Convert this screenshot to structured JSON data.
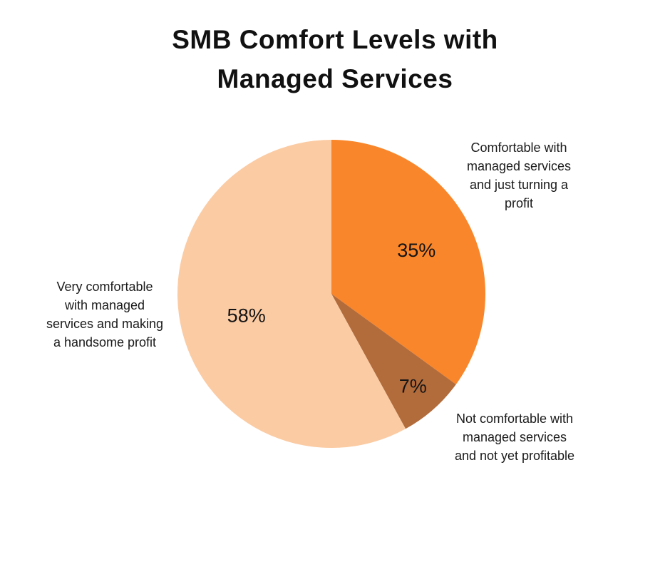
{
  "chart_data": {
    "type": "pie",
    "title": "SMB Comfort Levels with\nManaged Services",
    "background": "#FFFFFF",
    "text_color": "#1A1A1A",
    "legend": "none",
    "start_angle_deg": 0,
    "direction": "clockwise",
    "slices": [
      {
        "label": "Comfortable with\nmanaged services\nand just turning a\nprofit",
        "value": 35,
        "display": "35%",
        "color": "#F9862A"
      },
      {
        "label": "Not comfortable with\nmanaged services\nand not yet profitable",
        "value": 7,
        "display": "7%",
        "color": "#B26B3B"
      },
      {
        "label": "Very comfortable\nwith managed\nservices and making\na handsome profit",
        "value": 58,
        "display": "58%",
        "color": "#FBCBA3"
      }
    ]
  }
}
